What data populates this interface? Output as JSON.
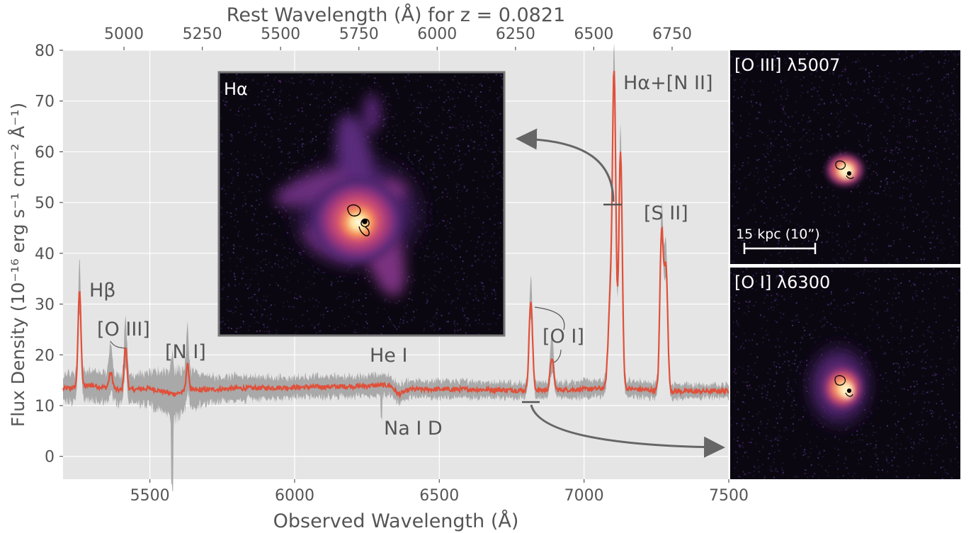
{
  "chart_data": {
    "type": "line",
    "xlabel": "Observed Wavelength (Å)",
    "ylabel": "Flux Density (10⁻¹⁶ erg s⁻¹ cm⁻² Å⁻¹)",
    "top_axis_label": "Rest Wavelength (Å) for z = 0.0821",
    "redshift": 0.0821,
    "xlim": [
      5200,
      7500
    ],
    "ylim": [
      -4.5,
      80
    ],
    "grid": true,
    "x_ticks": [
      5500,
      6000,
      6500,
      7000,
      7500
    ],
    "y_ticks": [
      0,
      10,
      20,
      30,
      40,
      50,
      60,
      70,
      80
    ],
    "top_ticks": [
      5000,
      5250,
      5500,
      5750,
      6000,
      6250,
      6500,
      6750
    ],
    "colors": {
      "line": "#e0503a",
      "band": "#a9a9a9",
      "background": "#e5e5e5",
      "grid": "#ffffff",
      "arrow": "#666666"
    },
    "continuum": [
      [
        5200,
        13.3
      ],
      [
        5300,
        14.0
      ],
      [
        5400,
        13.0
      ],
      [
        5500,
        13.4
      ],
      [
        5580,
        12.3
      ],
      [
        5650,
        13.0
      ],
      [
        5800,
        13.4
      ],
      [
        6000,
        13.6
      ],
      [
        6200,
        13.8
      ],
      [
        6300,
        14.0
      ],
      [
        6330,
        14.0
      ],
      [
        6360,
        12.2
      ],
      [
        6400,
        13.2
      ],
      [
        6600,
        13.2
      ],
      [
        6800,
        13.0
      ],
      [
        7000,
        13.2
      ],
      [
        7100,
        13.5
      ],
      [
        7300,
        12.8
      ],
      [
        7400,
        12.8
      ],
      [
        7500,
        12.9
      ]
    ],
    "noise_band": [
      [
        5200,
        2.8
      ],
      [
        5500,
        3.0
      ],
      [
        5580,
        5.0
      ],
      [
        5700,
        2.5
      ],
      [
        6000,
        2.0
      ],
      [
        6300,
        2.0
      ],
      [
        6400,
        1.7
      ],
      [
        6800,
        1.5
      ],
      [
        7100,
        1.7
      ],
      [
        7500,
        1.2
      ]
    ],
    "emission_lines": [
      {
        "center": 5257,
        "peak": 32.8,
        "width": 5
      },
      {
        "center": 5365,
        "peak": 16.5,
        "width": 6
      },
      {
        "center": 5416,
        "peak": 21.5,
        "width": 5
      },
      {
        "center": 5630,
        "peak": 18.0,
        "width": 5
      },
      {
        "center": 6816,
        "peak": 30.5,
        "width": 6
      },
      {
        "center": 6889,
        "peak": 19.5,
        "width": 6
      },
      {
        "center": 7090,
        "peak": 29.5,
        "width": 7
      },
      {
        "center": 7104,
        "peak": 74.0,
        "width": 6
      },
      {
        "center": 7126,
        "peak": 60.0,
        "width": 6
      },
      {
        "center": 7268,
        "peak": 44.0,
        "width": 6
      },
      {
        "center": 7283,
        "peak": 37.0,
        "width": 6
      }
    ],
    "line_labels": {
      "hbeta": "Hβ",
      "oiii": "[O III]",
      "ni": "[N I]",
      "hei": "He I",
      "naid": "Na I D",
      "oi": "[O I]",
      "sii": "[S II]",
      "ha_nii": "Hα+[N II]"
    }
  },
  "panels": {
    "halpha": "Hα",
    "oiii": "[O III] λ5007",
    "oi": "[O I] λ6300",
    "scalebar": "15 kpc (10”)"
  }
}
